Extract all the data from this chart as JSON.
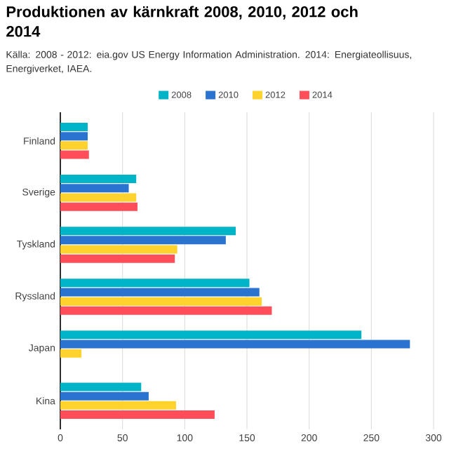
{
  "chart_data": {
    "type": "bar",
    "orientation": "horizontal",
    "title": "Produktionen av kärnkraft 2008, 2010, 2012 och 2014",
    "subtitle": "Källa: 2008 - 2012: eia.gov US Energy Information Administration. 2014: Energiateollisuus, Energiverket, IAEA.",
    "categories": [
      "Finland",
      "Sverige",
      "Tyskland",
      "Ryssland",
      "Japan",
      "Kina"
    ],
    "series": [
      {
        "name": "2008",
        "color": "#00b4c8",
        "values": [
          22,
          61,
          141,
          152,
          242,
          65
        ]
      },
      {
        "name": "2010",
        "color": "#2a74d0",
        "values": [
          22,
          55,
          133,
          160,
          281,
          71
        ]
      },
      {
        "name": "2012",
        "color": "#ffd22e",
        "values": [
          22,
          61,
          94,
          162,
          17,
          93
        ]
      },
      {
        "name": "2014",
        "color": "#ff4d5a",
        "values": [
          23,
          62,
          92,
          170,
          0,
          124
        ]
      }
    ],
    "xlim": [
      0,
      300
    ],
    "xticks": [
      0,
      50,
      100,
      150,
      200,
      250,
      300
    ],
    "grid": "x",
    "legend": "top"
  }
}
